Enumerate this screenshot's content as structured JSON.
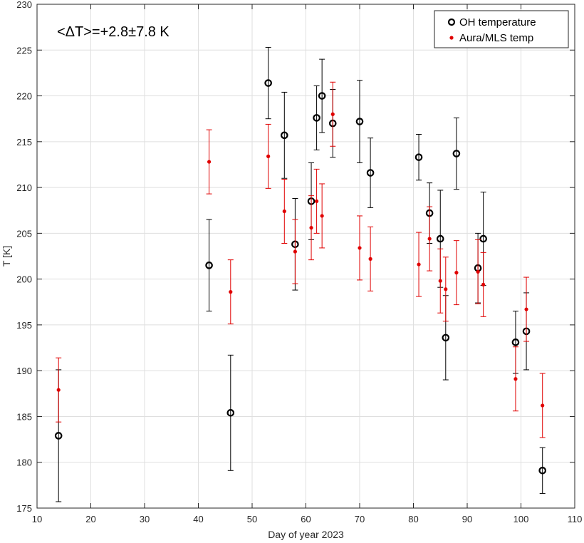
{
  "chart_data": {
    "type": "scatter",
    "title": "",
    "xlabel": "Day of year 2023",
    "ylabel": "T [K]",
    "xlim": [
      10,
      110
    ],
    "ylim": [
      175,
      230
    ],
    "xticks": [
      10,
      20,
      30,
      40,
      50,
      60,
      70,
      80,
      90,
      100,
      110
    ],
    "yticks": [
      175,
      180,
      185,
      190,
      195,
      200,
      205,
      210,
      215,
      220,
      225,
      230
    ],
    "grid": true,
    "legend_position": "top-right",
    "annotation": "<ΔT>=+2.8±7.8 K",
    "series": [
      {
        "name": "OH temperature",
        "marker": "open-circle",
        "color": "#000000",
        "points": [
          {
            "x": 14,
            "y": 182.9,
            "err": 7.2
          },
          {
            "x": 42,
            "y": 201.5,
            "err": 5.0
          },
          {
            "x": 46,
            "y": 185.4,
            "err": 6.3
          },
          {
            "x": 53,
            "y": 221.4,
            "err": 3.9
          },
          {
            "x": 56,
            "y": 215.7,
            "err": 4.7
          },
          {
            "x": 58,
            "y": 203.8,
            "err": 5.0
          },
          {
            "x": 61,
            "y": 208.5,
            "err": 4.2
          },
          {
            "x": 62,
            "y": 217.6,
            "err": 3.5
          },
          {
            "x": 63,
            "y": 220.0,
            "err": 4.0
          },
          {
            "x": 65,
            "y": 217.0,
            "err": 3.7
          },
          {
            "x": 70,
            "y": 217.2,
            "err": 4.5
          },
          {
            "x": 72,
            "y": 211.6,
            "err": 3.8
          },
          {
            "x": 81,
            "y": 213.3,
            "err": 2.5
          },
          {
            "x": 83,
            "y": 207.2,
            "err": 3.3
          },
          {
            "x": 85,
            "y": 204.4,
            "err": 5.3
          },
          {
            "x": 86,
            "y": 193.6,
            "err": 4.6
          },
          {
            "x": 88,
            "y": 213.7,
            "err": 3.9
          },
          {
            "x": 92,
            "y": 201.2,
            "err": 3.8
          },
          {
            "x": 93,
            "y": 204.4,
            "err": 5.1
          },
          {
            "x": 99,
            "y": 193.1,
            "err": 3.4
          },
          {
            "x": 101,
            "y": 194.3,
            "err": 4.2
          },
          {
            "x": 104,
            "y": 179.1,
            "err": 2.5
          }
        ]
      },
      {
        "name": "Aura/MLS temp",
        "marker": "filled-dot",
        "color": "#e00000",
        "points": [
          {
            "x": 14,
            "y": 187.9,
            "err": 3.5
          },
          {
            "x": 42,
            "y": 212.8,
            "err": 3.5
          },
          {
            "x": 46,
            "y": 198.6,
            "err": 3.5
          },
          {
            "x": 53,
            "y": 213.4,
            "err": 3.5
          },
          {
            "x": 56,
            "y": 207.4,
            "err": 3.5
          },
          {
            "x": 58,
            "y": 203.0,
            "err": 3.5
          },
          {
            "x": 61,
            "y": 205.6,
            "err": 3.5
          },
          {
            "x": 62,
            "y": 208.5,
            "err": 3.5
          },
          {
            "x": 63,
            "y": 206.9,
            "err": 3.5
          },
          {
            "x": 65,
            "y": 218.0,
            "err": 3.5
          },
          {
            "x": 70,
            "y": 203.4,
            "err": 3.5
          },
          {
            "x": 72,
            "y": 202.2,
            "err": 3.5
          },
          {
            "x": 81,
            "y": 201.6,
            "err": 3.5
          },
          {
            "x": 83,
            "y": 204.4,
            "err": 3.5
          },
          {
            "x": 85,
            "y": 199.8,
            "err": 3.5
          },
          {
            "x": 86,
            "y": 198.9,
            "err": 3.5
          },
          {
            "x": 88,
            "y": 200.7,
            "err": 3.5
          },
          {
            "x": 92,
            "y": 200.8,
            "err": 3.5
          },
          {
            "x": 93,
            "y": 199.4,
            "err": 3.5
          },
          {
            "x": 99,
            "y": 189.1,
            "err": 3.5
          },
          {
            "x": 101,
            "y": 196.7,
            "err": 3.5
          },
          {
            "x": 104,
            "y": 186.2,
            "err": 3.5
          }
        ]
      }
    ]
  }
}
